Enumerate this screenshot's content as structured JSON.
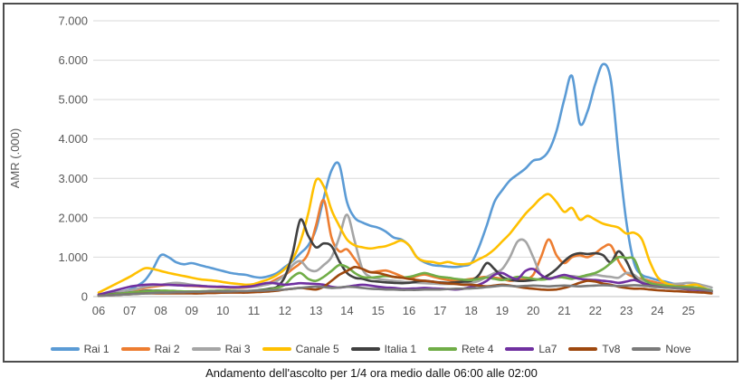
{
  "figure": {
    "caption": "Andamento dell'ascolto per 1/4 ora medio dalle 06:00 alle 02:00"
  },
  "chart_data": {
    "type": "line",
    "title": "",
    "xlabel": "",
    "ylabel": "AMR (.000)",
    "ylim": [
      0,
      7000
    ],
    "grid": true,
    "legend_position": "bottom",
    "smooth_lines": true,
    "x_start": 6,
    "x_step": 0.25,
    "x_count": 80,
    "x_tick_labels": [
      "06",
      "07",
      "08",
      "09",
      "10",
      "11",
      "12",
      "13",
      "14",
      "15",
      "16",
      "17",
      "18",
      "19",
      "20",
      "21",
      "22",
      "23",
      "24",
      "25"
    ],
    "y_ticks": [
      0,
      1000,
      2000,
      3000,
      4000,
      5000,
      6000,
      7000
    ],
    "y_tick_labels": [
      "0",
      "1.000",
      "2.000",
      "3.000",
      "4.000",
      "5.000",
      "6.000",
      "7.000"
    ],
    "series": [
      {
        "name": "Rai 1",
        "color": "#5B9BD5",
        "values": [
          50,
          80,
          100,
          130,
          180,
          280,
          420,
          700,
          1050,
          1000,
          870,
          820,
          850,
          800,
          750,
          700,
          650,
          600,
          570,
          550,
          500,
          480,
          520,
          600,
          750,
          900,
          1100,
          1300,
          1700,
          2500,
          3200,
          3350,
          2400,
          2000,
          1880,
          1800,
          1750,
          1650,
          1500,
          1450,
          1300,
          1000,
          870,
          800,
          780,
          760,
          750,
          780,
          850,
          1250,
          1800,
          2400,
          2700,
          2950,
          3100,
          3250,
          3450,
          3500,
          3700,
          4200,
          5000,
          5600,
          4400,
          4700,
          5400,
          5900,
          5500,
          3600,
          1900,
          850,
          550,
          480,
          420,
          380,
          330,
          290,
          260,
          230,
          200,
          160
        ]
      },
      {
        "name": "Rai 2",
        "color": "#ED7D31",
        "values": [
          50,
          80,
          100,
          120,
          150,
          180,
          220,
          250,
          280,
          300,
          300,
          280,
          270,
          260,
          250,
          240,
          230,
          220,
          220,
          230,
          250,
          280,
          350,
          450,
          550,
          700,
          850,
          1100,
          1800,
          2450,
          1500,
          1150,
          1200,
          950,
          700,
          620,
          640,
          660,
          600,
          520,
          450,
          520,
          560,
          510,
          460,
          420,
          400,
          420,
          450,
          480,
          500,
          480,
          450,
          400,
          420,
          450,
          550,
          1000,
          1450,
          1050,
          850,
          1000,
          1050,
          1000,
          1100,
          1250,
          1300,
          900,
          600,
          500,
          450,
          400,
          350,
          320,
          300,
          280,
          250,
          220,
          180,
          130
        ]
      },
      {
        "name": "Rai 3",
        "color": "#A5A5A5",
        "values": [
          50,
          70,
          100,
          130,
          160,
          200,
          250,
          280,
          300,
          330,
          350,
          330,
          300,
          280,
          260,
          250,
          240,
          230,
          230,
          240,
          250,
          280,
          320,
          400,
          550,
          800,
          900,
          700,
          650,
          800,
          1000,
          1500,
          2080,
          1400,
          700,
          500,
          450,
          420,
          400,
          380,
          360,
          350,
          340,
          330,
          320,
          320,
          330,
          340,
          350,
          400,
          500,
          600,
          700,
          1000,
          1400,
          1400,
          1000,
          550,
          480,
          480,
          500,
          520,
          500,
          520,
          550,
          520,
          500,
          480,
          600,
          550,
          400,
          350,
          300,
          300,
          320,
          330,
          350,
          330,
          280,
          230
        ]
      },
      {
        "name": "Canale 5",
        "color": "#FFC000",
        "values": [
          100,
          200,
          300,
          400,
          500,
          620,
          720,
          700,
          650,
          600,
          560,
          520,
          480,
          440,
          420,
          400,
          370,
          340,
          320,
          300,
          320,
          380,
          450,
          550,
          700,
          950,
          1400,
          2100,
          2950,
          2800,
          2200,
          1800,
          1450,
          1300,
          1250,
          1220,
          1250,
          1280,
          1350,
          1420,
          1300,
          1000,
          900,
          880,
          840,
          880,
          830,
          820,
          850,
          950,
          1050,
          1200,
          1400,
          1600,
          1850,
          2100,
          2300,
          2500,
          2600,
          2400,
          2150,
          2250,
          1950,
          2050,
          1950,
          1850,
          1800,
          1750,
          1600,
          1620,
          1450,
          900,
          500,
          350,
          280,
          250,
          280,
          300,
          220,
          150
        ]
      },
      {
        "name": "Italia 1",
        "color": "#404040",
        "values": [
          30,
          50,
          70,
          80,
          100,
          120,
          150,
          150,
          150,
          140,
          130,
          120,
          110,
          100,
          100,
          100,
          100,
          110,
          120,
          130,
          150,
          170,
          200,
          250,
          500,
          1100,
          1950,
          1550,
          1250,
          1350,
          1280,
          900,
          600,
          480,
          450,
          400,
          380,
          360,
          350,
          340,
          350,
          380,
          400,
          380,
          360,
          350,
          360,
          380,
          400,
          550,
          850,
          700,
          500,
          430,
          400,
          400,
          420,
          450,
          550,
          700,
          900,
          1050,
          1100,
          1080,
          1100,
          1050,
          870,
          1150,
          900,
          500,
          350,
          300,
          280,
          250,
          230,
          220,
          200,
          180,
          160,
          130
        ]
      },
      {
        "name": "Rete 4",
        "color": "#70AD47",
        "values": [
          30,
          50,
          60,
          80,
          100,
          120,
          130,
          140,
          150,
          150,
          140,
          130,
          130,
          130,
          140,
          150,
          150,
          150,
          140,
          140,
          150,
          160,
          180,
          220,
          300,
          500,
          600,
          450,
          400,
          500,
          650,
          800,
          750,
          600,
          500,
          480,
          500,
          520,
          500,
          480,
          500,
          550,
          600,
          550,
          500,
          480,
          450,
          430,
          420,
          450,
          480,
          450,
          420,
          450,
          500,
          480,
          450,
          430,
          450,
          500,
          480,
          450,
          500,
          550,
          600,
          700,
          850,
          1000,
          980,
          950,
          500,
          350,
          300,
          280,
          260,
          250,
          240,
          230,
          200,
          150
        ]
      },
      {
        "name": "La7",
        "color": "#7030A0",
        "values": [
          50,
          100,
          150,
          200,
          250,
          280,
          300,
          310,
          300,
          300,
          290,
          280,
          280,
          270,
          260,
          250,
          250,
          240,
          240,
          250,
          270,
          320,
          350,
          330,
          300,
          320,
          340,
          330,
          320,
          300,
          250,
          230,
          250,
          280,
          300,
          280,
          250,
          230,
          220,
          200,
          200,
          210,
          220,
          210,
          200,
          190,
          180,
          200,
          250,
          300,
          400,
          550,
          600,
          500,
          450,
          650,
          700,
          550,
          450,
          500,
          550,
          500,
          450,
          430,
          420,
          400,
          380,
          350,
          380,
          420,
          350,
          280,
          250,
          230,
          220,
          200,
          180,
          170,
          150,
          120
        ]
      },
      {
        "name": "Tv8",
        "color": "#9E480E",
        "values": [
          20,
          30,
          40,
          50,
          60,
          70,
          80,
          80,
          80,
          80,
          80,
          80,
          80,
          80,
          90,
          90,
          100,
          100,
          100,
          100,
          110,
          120,
          130,
          150,
          180,
          200,
          220,
          200,
          180,
          250,
          400,
          550,
          650,
          750,
          700,
          620,
          600,
          550,
          500,
          480,
          450,
          420,
          400,
          380,
          350,
          330,
          320,
          300,
          300,
          280,
          260,
          280,
          300,
          280,
          250,
          220,
          200,
          180,
          170,
          180,
          220,
          280,
          350,
          400,
          380,
          330,
          300,
          250,
          220,
          200,
          200,
          180,
          160,
          150,
          140,
          130,
          120,
          110,
          100,
          80
        ]
      },
      {
        "name": "Nove",
        "color": "#7A7A7A",
        "values": [
          20,
          30,
          40,
          50,
          60,
          70,
          80,
          90,
          100,
          100,
          110,
          110,
          120,
          120,
          130,
          130,
          130,
          130,
          140,
          140,
          150,
          150,
          160,
          170,
          180,
          200,
          220,
          240,
          250,
          240,
          220,
          230,
          250,
          240,
          220,
          200,
          190,
          180,
          180,
          170,
          170,
          170,
          180,
          180,
          180,
          190,
          200,
          200,
          210,
          220,
          240,
          260,
          280,
          270,
          260,
          270,
          280,
          270,
          260,
          270,
          280,
          270,
          260,
          270,
          280,
          290,
          280,
          270,
          280,
          290,
          280,
          260,
          240,
          230,
          220,
          210,
          200,
          190,
          170,
          140
        ]
      }
    ]
  }
}
